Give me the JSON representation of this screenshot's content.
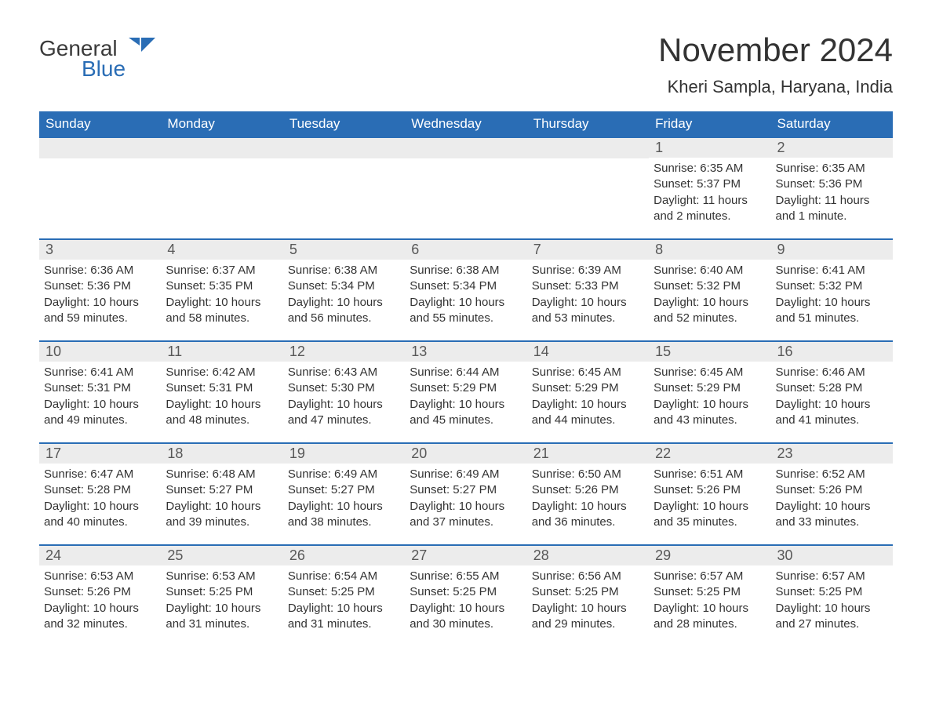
{
  "brand": {
    "word1": "General",
    "word2": "Blue",
    "color_dark": "#3a3a3a",
    "color_blue": "#2a6db5"
  },
  "header": {
    "month_title": "November 2024",
    "location": "Kheri Sampla, Haryana, India"
  },
  "calendar": {
    "header_bg": "#2a6db5",
    "header_fg": "#ffffff",
    "row_border_color": "#2a6db5",
    "daynum_bg": "#ececec",
    "daynum_fg": "#585858",
    "text_color": "#333333",
    "font_family": "Arial",
    "days_of_week": [
      "Sunday",
      "Monday",
      "Tuesday",
      "Wednesday",
      "Thursday",
      "Friday",
      "Saturday"
    ],
    "weeks": [
      [
        null,
        null,
        null,
        null,
        null,
        {
          "n": "1",
          "sunrise": "Sunrise: 6:35 AM",
          "sunset": "Sunset: 5:37 PM",
          "daylight": "Daylight: 11 hours and 2 minutes."
        },
        {
          "n": "2",
          "sunrise": "Sunrise: 6:35 AM",
          "sunset": "Sunset: 5:36 PM",
          "daylight": "Daylight: 11 hours and 1 minute."
        }
      ],
      [
        {
          "n": "3",
          "sunrise": "Sunrise: 6:36 AM",
          "sunset": "Sunset: 5:36 PM",
          "daylight": "Daylight: 10 hours and 59 minutes."
        },
        {
          "n": "4",
          "sunrise": "Sunrise: 6:37 AM",
          "sunset": "Sunset: 5:35 PM",
          "daylight": "Daylight: 10 hours and 58 minutes."
        },
        {
          "n": "5",
          "sunrise": "Sunrise: 6:38 AM",
          "sunset": "Sunset: 5:34 PM",
          "daylight": "Daylight: 10 hours and 56 minutes."
        },
        {
          "n": "6",
          "sunrise": "Sunrise: 6:38 AM",
          "sunset": "Sunset: 5:34 PM",
          "daylight": "Daylight: 10 hours and 55 minutes."
        },
        {
          "n": "7",
          "sunrise": "Sunrise: 6:39 AM",
          "sunset": "Sunset: 5:33 PM",
          "daylight": "Daylight: 10 hours and 53 minutes."
        },
        {
          "n": "8",
          "sunrise": "Sunrise: 6:40 AM",
          "sunset": "Sunset: 5:32 PM",
          "daylight": "Daylight: 10 hours and 52 minutes."
        },
        {
          "n": "9",
          "sunrise": "Sunrise: 6:41 AM",
          "sunset": "Sunset: 5:32 PM",
          "daylight": "Daylight: 10 hours and 51 minutes."
        }
      ],
      [
        {
          "n": "10",
          "sunrise": "Sunrise: 6:41 AM",
          "sunset": "Sunset: 5:31 PM",
          "daylight": "Daylight: 10 hours and 49 minutes."
        },
        {
          "n": "11",
          "sunrise": "Sunrise: 6:42 AM",
          "sunset": "Sunset: 5:31 PM",
          "daylight": "Daylight: 10 hours and 48 minutes."
        },
        {
          "n": "12",
          "sunrise": "Sunrise: 6:43 AM",
          "sunset": "Sunset: 5:30 PM",
          "daylight": "Daylight: 10 hours and 47 minutes."
        },
        {
          "n": "13",
          "sunrise": "Sunrise: 6:44 AM",
          "sunset": "Sunset: 5:29 PM",
          "daylight": "Daylight: 10 hours and 45 minutes."
        },
        {
          "n": "14",
          "sunrise": "Sunrise: 6:45 AM",
          "sunset": "Sunset: 5:29 PM",
          "daylight": "Daylight: 10 hours and 44 minutes."
        },
        {
          "n": "15",
          "sunrise": "Sunrise: 6:45 AM",
          "sunset": "Sunset: 5:29 PM",
          "daylight": "Daylight: 10 hours and 43 minutes."
        },
        {
          "n": "16",
          "sunrise": "Sunrise: 6:46 AM",
          "sunset": "Sunset: 5:28 PM",
          "daylight": "Daylight: 10 hours and 41 minutes."
        }
      ],
      [
        {
          "n": "17",
          "sunrise": "Sunrise: 6:47 AM",
          "sunset": "Sunset: 5:28 PM",
          "daylight": "Daylight: 10 hours and 40 minutes."
        },
        {
          "n": "18",
          "sunrise": "Sunrise: 6:48 AM",
          "sunset": "Sunset: 5:27 PM",
          "daylight": "Daylight: 10 hours and 39 minutes."
        },
        {
          "n": "19",
          "sunrise": "Sunrise: 6:49 AM",
          "sunset": "Sunset: 5:27 PM",
          "daylight": "Daylight: 10 hours and 38 minutes."
        },
        {
          "n": "20",
          "sunrise": "Sunrise: 6:49 AM",
          "sunset": "Sunset: 5:27 PM",
          "daylight": "Daylight: 10 hours and 37 minutes."
        },
        {
          "n": "21",
          "sunrise": "Sunrise: 6:50 AM",
          "sunset": "Sunset: 5:26 PM",
          "daylight": "Daylight: 10 hours and 36 minutes."
        },
        {
          "n": "22",
          "sunrise": "Sunrise: 6:51 AM",
          "sunset": "Sunset: 5:26 PM",
          "daylight": "Daylight: 10 hours and 35 minutes."
        },
        {
          "n": "23",
          "sunrise": "Sunrise: 6:52 AM",
          "sunset": "Sunset: 5:26 PM",
          "daylight": "Daylight: 10 hours and 33 minutes."
        }
      ],
      [
        {
          "n": "24",
          "sunrise": "Sunrise: 6:53 AM",
          "sunset": "Sunset: 5:26 PM",
          "daylight": "Daylight: 10 hours and 32 minutes."
        },
        {
          "n": "25",
          "sunrise": "Sunrise: 6:53 AM",
          "sunset": "Sunset: 5:25 PM",
          "daylight": "Daylight: 10 hours and 31 minutes."
        },
        {
          "n": "26",
          "sunrise": "Sunrise: 6:54 AM",
          "sunset": "Sunset: 5:25 PM",
          "daylight": "Daylight: 10 hours and 31 minutes."
        },
        {
          "n": "27",
          "sunrise": "Sunrise: 6:55 AM",
          "sunset": "Sunset: 5:25 PM",
          "daylight": "Daylight: 10 hours and 30 minutes."
        },
        {
          "n": "28",
          "sunrise": "Sunrise: 6:56 AM",
          "sunset": "Sunset: 5:25 PM",
          "daylight": "Daylight: 10 hours and 29 minutes."
        },
        {
          "n": "29",
          "sunrise": "Sunrise: 6:57 AM",
          "sunset": "Sunset: 5:25 PM",
          "daylight": "Daylight: 10 hours and 28 minutes."
        },
        {
          "n": "30",
          "sunrise": "Sunrise: 6:57 AM",
          "sunset": "Sunset: 5:25 PM",
          "daylight": "Daylight: 10 hours and 27 minutes."
        }
      ]
    ]
  }
}
